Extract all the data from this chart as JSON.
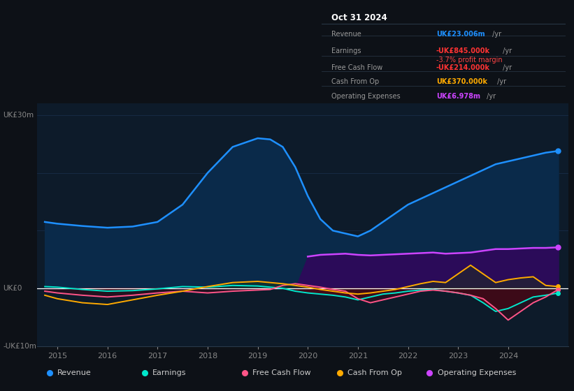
{
  "bg_color": "#0d1117",
  "plot_bg_color": "#0d1b2a",
  "title_box": {
    "date": "Oct 31 2024",
    "rows": [
      {
        "label": "Revenue",
        "value": "UK£23.006m",
        "value_color": "#1e90ff",
        "suffix": " /yr",
        "extra": null,
        "extra_color": null
      },
      {
        "label": "Earnings",
        "value": "-UK£845.000k",
        "value_color": "#ff3333",
        "suffix": " /yr",
        "extra": "-3.7% profit margin",
        "extra_color": "#ff4444"
      },
      {
        "label": "Free Cash Flow",
        "value": "-UK£214.000k",
        "value_color": "#ff3333",
        "suffix": " /yr",
        "extra": null,
        "extra_color": null
      },
      {
        "label": "Cash From Op",
        "value": "UK£370.000k",
        "value_color": "#ffaa00",
        "suffix": " /yr",
        "extra": null,
        "extra_color": null
      },
      {
        "label": "Operating Expenses",
        "value": "UK£6.978m",
        "value_color": "#cc44ff",
        "suffix": " /yr",
        "extra": null,
        "extra_color": null
      }
    ]
  },
  "ylabel_top": "UK£30m",
  "ylabel_zero": "UK£0",
  "ylabel_bottom": "-UK£10m",
  "years": [
    2014.75,
    2015.0,
    2015.5,
    2016.0,
    2016.5,
    2017.0,
    2017.5,
    2018.0,
    2018.5,
    2019.0,
    2019.25,
    2019.5,
    2019.75,
    2020.0,
    2020.25,
    2020.5,
    2020.75,
    2021.0,
    2021.25,
    2021.5,
    2021.75,
    2022.0,
    2022.25,
    2022.5,
    2022.75,
    2023.0,
    2023.25,
    2023.5,
    2023.75,
    2024.0,
    2024.25,
    2024.5,
    2024.75,
    2025.0
  ],
  "revenue": [
    11.5,
    11.2,
    10.8,
    10.5,
    10.7,
    11.5,
    14.5,
    20.0,
    24.5,
    26.0,
    25.8,
    24.5,
    21.0,
    16.0,
    12.0,
    10.0,
    9.5,
    9.0,
    10.0,
    11.5,
    13.0,
    14.5,
    15.5,
    16.5,
    17.5,
    18.5,
    19.5,
    20.5,
    21.5,
    22.0,
    22.5,
    23.0,
    23.5,
    23.8
  ],
  "earnings": [
    0.3,
    0.2,
    -0.2,
    -0.5,
    -0.4,
    -0.1,
    0.3,
    0.2,
    0.5,
    0.4,
    0.2,
    0.0,
    -0.5,
    -0.8,
    -1.0,
    -1.2,
    -1.5,
    -2.0,
    -1.5,
    -1.0,
    -0.8,
    -0.5,
    -0.3,
    -0.2,
    -0.5,
    -0.8,
    -1.2,
    -2.5,
    -4.0,
    -3.5,
    -2.5,
    -1.5,
    -1.2,
    -0.8
  ],
  "free_cash_flow": [
    -0.5,
    -0.8,
    -1.2,
    -1.5,
    -1.2,
    -0.8,
    -0.5,
    -0.8,
    -0.5,
    -0.3,
    -0.2,
    0.5,
    0.8,
    0.5,
    0.2,
    -0.2,
    -0.5,
    -1.8,
    -2.5,
    -2.0,
    -1.5,
    -1.0,
    -0.5,
    -0.3,
    -0.5,
    -0.8,
    -1.2,
    -1.8,
    -3.5,
    -5.5,
    -4.0,
    -2.5,
    -1.5,
    -0.2
  ],
  "cash_from_op": [
    -1.2,
    -1.8,
    -2.5,
    -2.8,
    -2.0,
    -1.2,
    -0.5,
    0.3,
    1.0,
    1.2,
    1.0,
    0.8,
    0.5,
    0.2,
    -0.2,
    -0.5,
    -0.8,
    -1.0,
    -0.8,
    -0.5,
    -0.2,
    0.3,
    0.8,
    1.2,
    1.0,
    2.5,
    4.0,
    2.5,
    1.0,
    1.5,
    1.8,
    2.0,
    0.5,
    0.3
  ],
  "op_expenses": [
    0.0,
    0.0,
    0.0,
    0.0,
    0.0,
    0.0,
    0.0,
    0.0,
    0.0,
    0.0,
    0.0,
    0.0,
    0.0,
    5.5,
    5.8,
    5.9,
    6.0,
    5.8,
    5.7,
    5.8,
    5.9,
    6.0,
    6.1,
    6.2,
    6.0,
    6.1,
    6.2,
    6.5,
    6.8,
    6.8,
    6.9,
    7.0,
    7.0,
    7.1
  ],
  "colors": {
    "revenue": "#1e90ff",
    "earnings": "#00e8cc",
    "free_cash_flow": "#ff5588",
    "cash_from_op": "#ffaa00",
    "op_expenses": "#cc44ff"
  },
  "fill_revenue": "#0a2a4a",
  "fill_opex": "#2d0a5a",
  "fill_earnings_neg": "#4a0a18",
  "fill_fcf_neg": "#3a0a18",
  "ylim": [
    -10,
    32
  ],
  "xlim": [
    2014.6,
    2025.2
  ],
  "xticks": [
    2015,
    2016,
    2017,
    2018,
    2019,
    2020,
    2021,
    2022,
    2023,
    2024
  ],
  "grid_color": "#1a3050",
  "zero_line_color": "#ffffff",
  "legend_items": [
    {
      "label": "Revenue",
      "color": "#1e90ff"
    },
    {
      "label": "Earnings",
      "color": "#00e8cc"
    },
    {
      "label": "Free Cash Flow",
      "color": "#ff5588"
    },
    {
      "label": "Cash From Op",
      "color": "#ffaa00"
    },
    {
      "label": "Operating Expenses",
      "color": "#cc44ff"
    }
  ]
}
